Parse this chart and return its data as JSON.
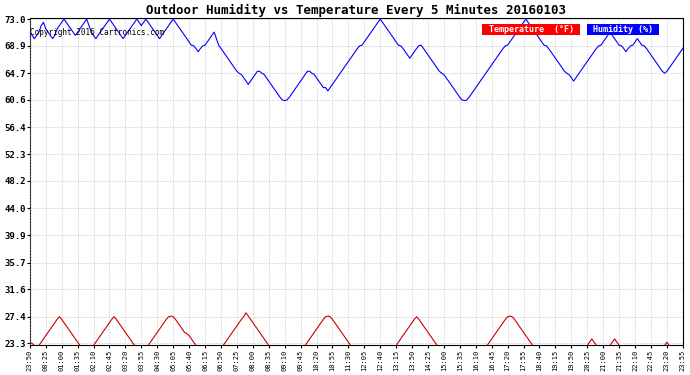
{
  "title": "Outdoor Humidity vs Temperature Every 5 Minutes 20160103",
  "copyright_text": "Copyright 2016 Cartronics.com",
  "background_color": "#ffffff",
  "plot_bg_color": "#ffffff",
  "grid_color": "#bbbbbb",
  "yticks": [
    23.3,
    27.4,
    31.6,
    35.7,
    39.9,
    44.0,
    48.2,
    52.3,
    56.4,
    60.6,
    64.7,
    68.9,
    73.0
  ],
  "xtick_labels": [
    "23:50",
    "00:25",
    "01:00",
    "01:35",
    "02:10",
    "02:45",
    "03:20",
    "03:55",
    "04:30",
    "05:05",
    "05:40",
    "06:15",
    "06:50",
    "07:25",
    "08:00",
    "08:35",
    "09:10",
    "09:45",
    "10:20",
    "10:55",
    "11:30",
    "12:05",
    "12:40",
    "13:15",
    "13:50",
    "14:25",
    "15:00",
    "15:35",
    "16:10",
    "16:45",
    "17:20",
    "17:55",
    "18:40",
    "19:15",
    "19:50",
    "20:25",
    "21:00",
    "21:35",
    "22:10",
    "22:45",
    "23:20",
    "23:55"
  ],
  "humidity_color": "#0000ff",
  "temp_color": "#cc0000",
  "ylim_min": 23.3,
  "ylim_max": 73.0,
  "humidity_data": [
    71.0,
    70.5,
    70.0,
    70.5,
    71.0,
    72.0,
    72.5,
    71.5,
    71.0,
    70.5,
    70.0,
    70.5,
    71.5,
    72.0,
    72.5,
    73.0,
    72.5,
    72.0,
    71.5,
    71.0,
    70.5,
    71.0,
    71.5,
    72.0,
    72.5,
    73.0,
    72.0,
    71.0,
    70.5,
    70.0,
    70.5,
    71.0,
    71.5,
    72.0,
    72.5,
    73.0,
    72.5,
    72.0,
    71.5,
    71.0,
    70.5,
    70.0,
    70.5,
    71.0,
    71.5,
    72.0,
    72.5,
    73.0,
    72.5,
    72.0,
    72.5,
    73.0,
    72.5,
    72.0,
    71.5,
    71.0,
    70.5,
    70.0,
    70.5,
    71.0,
    71.5,
    72.0,
    72.5,
    73.0,
    72.5,
    72.0,
    71.5,
    71.0,
    70.5,
    70.0,
    69.5,
    69.0,
    68.9,
    68.5,
    68.0,
    68.5,
    68.9,
    69.0,
    69.5,
    70.0,
    70.5,
    71.0,
    70.0,
    69.0,
    68.5,
    68.0,
    67.5,
    67.0,
    66.5,
    66.0,
    65.5,
    65.0,
    64.7,
    64.5,
    64.0,
    63.5,
    63.0,
    63.5,
    64.0,
    64.5,
    65.0,
    65.0,
    64.7,
    64.5,
    64.0,
    63.5,
    63.0,
    62.5,
    62.0,
    61.5,
    61.0,
    60.6,
    60.5,
    60.6,
    61.0,
    61.5,
    62.0,
    62.5,
    63.0,
    63.5,
    64.0,
    64.5,
    65.0,
    65.0,
    64.7,
    64.5,
    64.0,
    63.5,
    63.0,
    62.5,
    62.5,
    62.0,
    62.5,
    63.0,
    63.5,
    64.0,
    64.5,
    65.0,
    65.5,
    66.0,
    66.5,
    67.0,
    67.5,
    68.0,
    68.5,
    68.9,
    69.0,
    69.5,
    70.0,
    70.5,
    71.0,
    71.5,
    72.0,
    72.5,
    73.0,
    72.5,
    72.0,
    71.5,
    71.0,
    70.5,
    70.0,
    69.5,
    69.0,
    68.9,
    68.5,
    68.0,
    67.5,
    67.0,
    67.5,
    68.0,
    68.5,
    68.9,
    69.0,
    68.5,
    68.0,
    67.5,
    67.0,
    66.5,
    66.0,
    65.5,
    65.0,
    64.7,
    64.5,
    64.0,
    63.5,
    63.0,
    62.5,
    62.0,
    61.5,
    61.0,
    60.6,
    60.5,
    60.6,
    61.0,
    61.5,
    62.0,
    62.5,
    63.0,
    63.5,
    64.0,
    64.5,
    65.0,
    65.5,
    66.0,
    66.5,
    67.0,
    67.5,
    68.0,
    68.5,
    68.9,
    69.0,
    69.5,
    70.0,
    70.5,
    71.0,
    71.5,
    72.0,
    72.5,
    73.0,
    72.5,
    72.0,
    71.5,
    71.0,
    70.5,
    70.0,
    69.5,
    69.0,
    68.9,
    68.5,
    68.0,
    67.5,
    67.0,
    66.5,
    66.0,
    65.5,
    65.0,
    64.7,
    64.5,
    64.0,
    63.5,
    64.0,
    64.5,
    65.0,
    65.5,
    66.0,
    66.5,
    67.0,
    67.5,
    68.0,
    68.5,
    68.9,
    69.0,
    69.5,
    70.0,
    70.5,
    71.0,
    70.5,
    70.0,
    69.5,
    69.0,
    68.9,
    68.5,
    68.0,
    68.5,
    68.9,
    69.0,
    69.5,
    70.0,
    69.5,
    69.0,
    68.9,
    68.5,
    68.0,
    67.5,
    67.0,
    66.5,
    66.0,
    65.5,
    65.0,
    64.7,
    65.0,
    65.5,
    66.0,
    66.5,
    67.0,
    67.5,
    68.0,
    68.5,
    68.9,
    69.0
  ],
  "temp_data": [
    23.5,
    23.3,
    23.0,
    22.8,
    23.0,
    23.5,
    24.0,
    24.5,
    25.0,
    25.5,
    26.0,
    26.5,
    27.0,
    27.4,
    27.0,
    26.5,
    26.0,
    25.5,
    25.0,
    24.5,
    24.0,
    23.5,
    23.0,
    22.5,
    22.0,
    21.5,
    22.0,
    22.5,
    23.0,
    23.5,
    24.0,
    24.5,
    25.0,
    25.5,
    26.0,
    26.5,
    27.0,
    27.4,
    27.0,
    26.5,
    26.0,
    25.5,
    25.0,
    24.5,
    24.0,
    23.5,
    23.0,
    22.5,
    22.0,
    21.5,
    22.0,
    22.5,
    23.0,
    23.5,
    24.0,
    24.5,
    25.0,
    25.5,
    26.0,
    26.5,
    27.0,
    27.4,
    27.5,
    27.4,
    27.0,
    26.5,
    26.0,
    25.5,
    25.0,
    24.8,
    24.5,
    24.0,
    23.5,
    23.0,
    22.5,
    22.0,
    21.5,
    21.0,
    20.5,
    20.0,
    20.5,
    21.0,
    21.5,
    22.0,
    22.5,
    23.0,
    23.5,
    24.0,
    24.5,
    25.0,
    25.5,
    26.0,
    26.5,
    27.0,
    27.4,
    28.0,
    27.5,
    27.0,
    26.5,
    26.0,
    25.5,
    25.0,
    24.5,
    24.0,
    23.5,
    23.0,
    22.5,
    22.0,
    21.5,
    21.0,
    20.5,
    20.0,
    19.5,
    19.0,
    19.5,
    20.0,
    20.5,
    21.0,
    21.5,
    22.0,
    22.5,
    23.0,
    23.5,
    24.0,
    24.5,
    25.0,
    25.5,
    26.0,
    26.5,
    27.0,
    27.4,
    27.5,
    27.4,
    27.0,
    26.5,
    26.0,
    25.5,
    25.0,
    24.5,
    24.0,
    23.5,
    23.0,
    22.5,
    22.0,
    21.5,
    21.0,
    20.5,
    20.0,
    19.5,
    19.0,
    18.5,
    18.0,
    18.5,
    19.0,
    19.5,
    20.0,
    20.5,
    21.0,
    21.5,
    22.0,
    22.5,
    23.0,
    23.5,
    24.0,
    24.5,
    25.0,
    25.5,
    26.0,
    26.5,
    27.0,
    27.4,
    27.0,
    26.5,
    26.0,
    25.5,
    25.0,
    24.5,
    24.0,
    23.5,
    23.0,
    22.5,
    22.0,
    21.5,
    21.0,
    20.5,
    20.0,
    19.5,
    19.0,
    18.5,
    18.0,
    17.5,
    18.0,
    18.5,
    19.0,
    19.5,
    20.0,
    20.5,
    21.0,
    21.5,
    22.0,
    22.5,
    23.0,
    23.5,
    24.0,
    24.5,
    25.0,
    25.5,
    26.0,
    26.5,
    27.0,
    27.4,
    27.5,
    27.4,
    27.0,
    26.5,
    26.0,
    25.5,
    25.0,
    24.5,
    24.0,
    23.5,
    23.0,
    22.5,
    22.0,
    21.5,
    21.0,
    20.5,
    20.0,
    19.5,
    19.0,
    18.5,
    18.0,
    17.5,
    17.0,
    17.5,
    18.0,
    18.5,
    19.0,
    19.5,
    20.0,
    20.5,
    21.0,
    21.5,
    22.0,
    22.5,
    23.0,
    23.5,
    24.0,
    23.5,
    23.0,
    22.5,
    22.0,
    21.5,
    22.0,
    22.5,
    23.0,
    23.5,
    24.0,
    23.5,
    23.0,
    22.5,
    22.0,
    21.5,
    21.0,
    20.5,
    20.0,
    19.5,
    19.0,
    18.5,
    18.0,
    18.5,
    19.0,
    19.5,
    20.0,
    20.5,
    21.0,
    21.5,
    22.0,
    22.5,
    23.0,
    23.5,
    23.0,
    22.5,
    22.0,
    21.5,
    22.0,
    22.5,
    23.0,
    22.5,
    22.0
  ]
}
